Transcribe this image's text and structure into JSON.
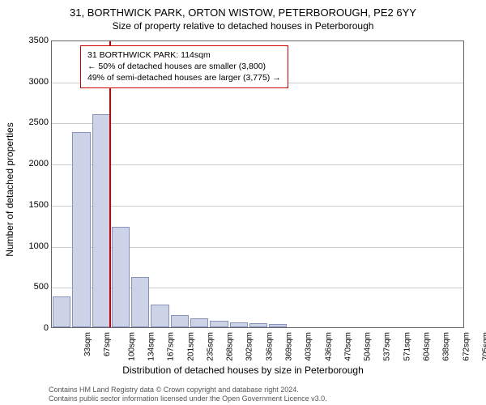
{
  "titles": {
    "main": "31, BORTHWICK PARK, ORTON WISTOW, PETERBOROUGH, PE2 6YY",
    "sub": "Size of property relative to detached houses in Peterborough"
  },
  "chart": {
    "type": "histogram",
    "background_color": "#ffffff",
    "grid_color": "#cccccc",
    "bar_fill": "#cdd3e7",
    "bar_border": "#8892bb",
    "marker_color": "#cc0000",
    "x_categories": [
      "33sqm",
      "67sqm",
      "100sqm",
      "134sqm",
      "167sqm",
      "201sqm",
      "235sqm",
      "268sqm",
      "302sqm",
      "336sqm",
      "369sqm",
      "403sqm",
      "436sqm",
      "470sqm",
      "504sqm",
      "537sqm",
      "571sqm",
      "604sqm",
      "638sqm",
      "672sqm",
      "705sqm"
    ],
    "values": [
      370,
      2380,
      2590,
      1220,
      610,
      280,
      145,
      108,
      80,
      62,
      50,
      40,
      0,
      0,
      0,
      0,
      0,
      0,
      0,
      0,
      0
    ],
    "ylim": [
      0,
      3500
    ],
    "ytick_step": 500,
    "yticks": [
      0,
      500,
      1000,
      1500,
      2000,
      2500,
      3000,
      3500
    ],
    "y_label": "Number of detached properties",
    "x_label": "Distribution of detached houses by size in Peterborough",
    "marker_value_sqm": 114,
    "annotation": {
      "line1": "31 BORTHWICK PARK: 114sqm",
      "line2": "← 50% of detached houses are smaller (3,800)",
      "line3": "49% of semi-detached houses are larger (3,775) →"
    }
  },
  "footer": {
    "line1": "Contains HM Land Registry data © Crown copyright and database right 2024.",
    "line2": "Contains public sector information licensed under the Open Government Licence v3.0."
  }
}
